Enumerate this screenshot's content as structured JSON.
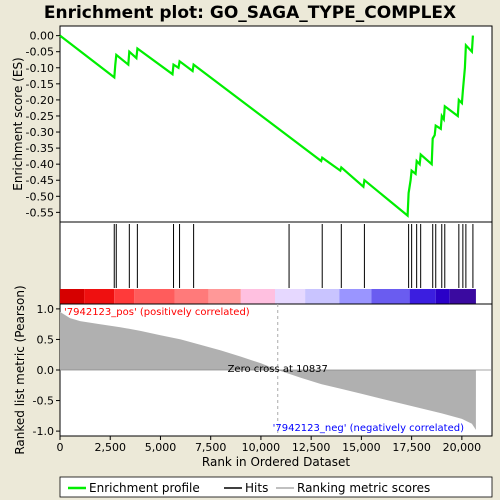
{
  "chart_data": {
    "type": "line",
    "title": "Enrichment plot: GO_SAGA_TYPE_COMPLEX",
    "top_panel": {
      "ylabel": "Enrichment score (ES)",
      "ylim": [
        -0.58,
        0.03
      ],
      "yticks": [
        "0.00",
        "-0.05",
        "-0.10",
        "-0.15",
        "-0.20",
        "-0.25",
        "-0.30",
        "-0.35",
        "-0.40",
        "-0.45",
        "-0.50",
        "-0.55"
      ],
      "ytick_values": [
        0.0,
        -0.05,
        -0.1,
        -0.15,
        -0.2,
        -0.25,
        -0.3,
        -0.35,
        -0.4,
        -0.45,
        -0.5,
        -0.55
      ],
      "series": [
        {
          "name": "Enrichment profile",
          "color": "#00ee00",
          "x": [
            0,
            2700,
            2750,
            2800,
            3400,
            3450,
            3800,
            3850,
            5600,
            5650,
            5900,
            5950,
            6600,
            6650,
            13000,
            13050,
            13950,
            14000,
            15100,
            15150,
            17300,
            17350,
            17450,
            17500,
            17700,
            17750,
            17900,
            17950,
            18500,
            18550,
            18650,
            18700,
            18950,
            19000,
            19100,
            19150,
            19800,
            19850,
            20000,
            20050,
            20150,
            20200,
            20500,
            20550
          ],
          "y": [
            0.0,
            -0.13,
            -0.09,
            -0.06,
            -0.09,
            -0.05,
            -0.07,
            -0.04,
            -0.12,
            -0.09,
            -0.1,
            -0.08,
            -0.11,
            -0.09,
            -0.39,
            -0.38,
            -0.42,
            -0.41,
            -0.47,
            -0.45,
            -0.56,
            -0.49,
            -0.45,
            -0.42,
            -0.43,
            -0.39,
            -0.4,
            -0.37,
            -0.4,
            -0.32,
            -0.31,
            -0.28,
            -0.29,
            -0.25,
            -0.26,
            -0.22,
            -0.25,
            -0.2,
            -0.21,
            -0.17,
            -0.1,
            -0.03,
            -0.05,
            0.0
          ]
        }
      ]
    },
    "hits": [
      2700,
      2800,
      3450,
      3850,
      5650,
      5950,
      6650,
      11400,
      13050,
      14000,
      15150,
      17350,
      17500,
      17750,
      17950,
      18550,
      18700,
      19000,
      19150,
      19850,
      20050,
      20200,
      20550
    ],
    "xlim": [
      0,
      21500
    ],
    "xlabel": "Rank in Ordered Dataset",
    "xticks": [
      "0",
      "2,500",
      "5,000",
      "7,500",
      "10,000",
      "12,500",
      "15,000",
      "17,500",
      "20,000"
    ],
    "xtick_values": [
      0,
      2500,
      5000,
      7500,
      10000,
      12500,
      15000,
      17500,
      20000
    ],
    "bottom_panel": {
      "ylabel": "Ranked list metric (Pearson)",
      "ylim": [
        -1.08,
        1.08
      ],
      "yticks": [
        "1.0",
        "0.5",
        "0.0",
        "-0.5",
        "-1.0"
      ],
      "ytick_values": [
        1.0,
        0.5,
        0.0,
        -0.5,
        -1.0
      ],
      "metric_x": [
        0,
        500,
        1000,
        2000,
        3000,
        4000,
        5000,
        6000,
        7000,
        8000,
        9000,
        10000,
        10837,
        12000,
        13000,
        14000,
        15000,
        16000,
        17000,
        18000,
        19000,
        20000,
        20500,
        20700
      ],
      "metric_y": [
        0.95,
        0.85,
        0.8,
        0.75,
        0.7,
        0.64,
        0.57,
        0.5,
        0.41,
        0.32,
        0.22,
        0.11,
        0.0,
        -0.13,
        -0.23,
        -0.31,
        -0.39,
        -0.47,
        -0.55,
        -0.63,
        -0.71,
        -0.8,
        -0.88,
        -0.98
      ],
      "color": "#b0b0b0",
      "zero_cross_label": "Zero cross at 10837",
      "zero_cross_x": 10837,
      "pos_label": "'7942123_pos' (positively correlated)",
      "neg_label": "'7942123_neg' (negatively correlated)",
      "pos_color": "#ff0000",
      "neg_color": "#0000ff"
    },
    "heat_bar_colors": [
      "#d60000",
      "#ef1010",
      "#ff3a3a",
      "#ff5c5c",
      "#ff7a7a",
      "#ff9898",
      "#ffc0e0",
      "#e6d8ff",
      "#c9c4ff",
      "#9a95ff",
      "#6a5cf0",
      "#3b1ee0",
      "#2a00c8",
      "#3a0aa0"
    ],
    "heat_bar_edges": [
      0,
      1200,
      2700,
      3700,
      5700,
      7400,
      9000,
      10700,
      12200,
      13900,
      15500,
      17400,
      18700,
      19400,
      20700
    ],
    "legend": [
      {
        "label": "Enrichment profile",
        "color": "#00ee00"
      },
      {
        "label": "Hits",
        "color": "#000000"
      },
      {
        "label": "Ranking metric scores",
        "color": "#c0c0c0"
      }
    ]
  }
}
